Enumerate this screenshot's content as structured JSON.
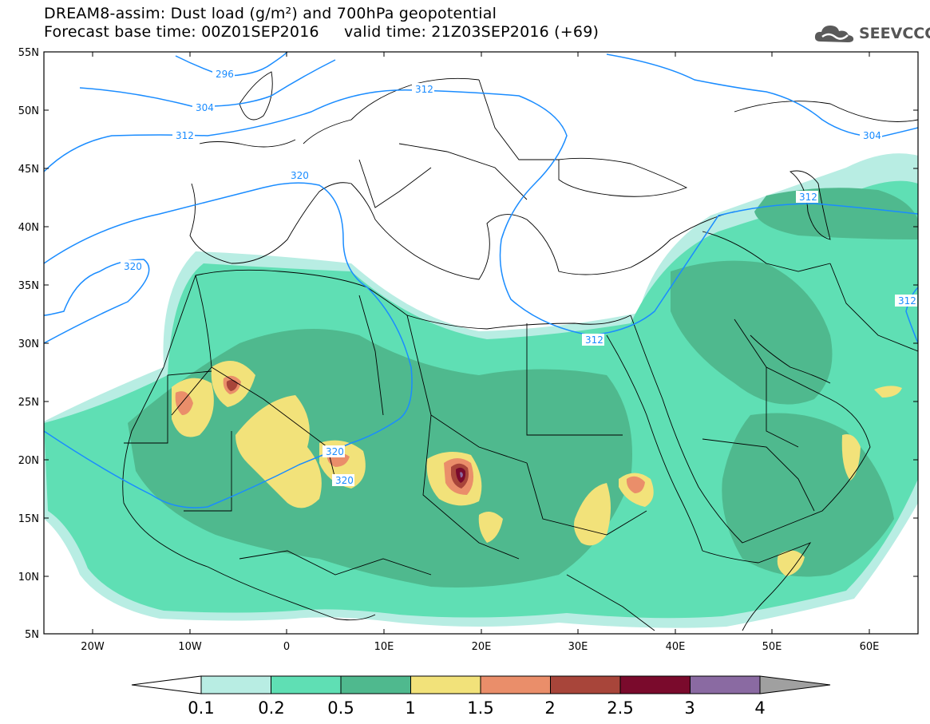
{
  "header": {
    "title_line1": "DREAM8-assim: Dust load (g/m²) and 700hPa geopotential",
    "title_line2": "Forecast base time: 00Z01SEP2016     valid time: 21Z03SEP2016 (+69)",
    "logo_text": "SEEVCCC"
  },
  "map": {
    "extent": {
      "lon_min": -25,
      "lon_max": 65,
      "lat_min": 5,
      "lat_max": 55
    },
    "lat_labels": [
      "55N",
      "50N",
      "45N",
      "40N",
      "35N",
      "30N",
      "25N",
      "20N",
      "15N",
      "10N",
      "5N"
    ],
    "lon_labels": [
      "20W",
      "10W",
      "0",
      "10E",
      "20E",
      "30E",
      "40E",
      "50E",
      "60E"
    ],
    "geopotential_contour_labels": [
      "296",
      "304",
      "312",
      "312",
      "320",
      "320",
      "320",
      "320",
      "312",
      "312",
      "304",
      "312"
    ],
    "contour_color": "#1a8cff"
  },
  "colorbar": {
    "levels": [
      "0.1",
      "0.2",
      "0.5",
      "1",
      "1.5",
      "2",
      "2.5",
      "3",
      "4"
    ],
    "colors": [
      "#b8ede3",
      "#5fdfb4",
      "#4fb98e",
      "#f2e27a",
      "#ea8e6a",
      "#a8453a",
      "#7a0a2c",
      "#8a6aa2"
    ],
    "over_color": "#a0a0a0",
    "under_color": "#ffffff"
  }
}
